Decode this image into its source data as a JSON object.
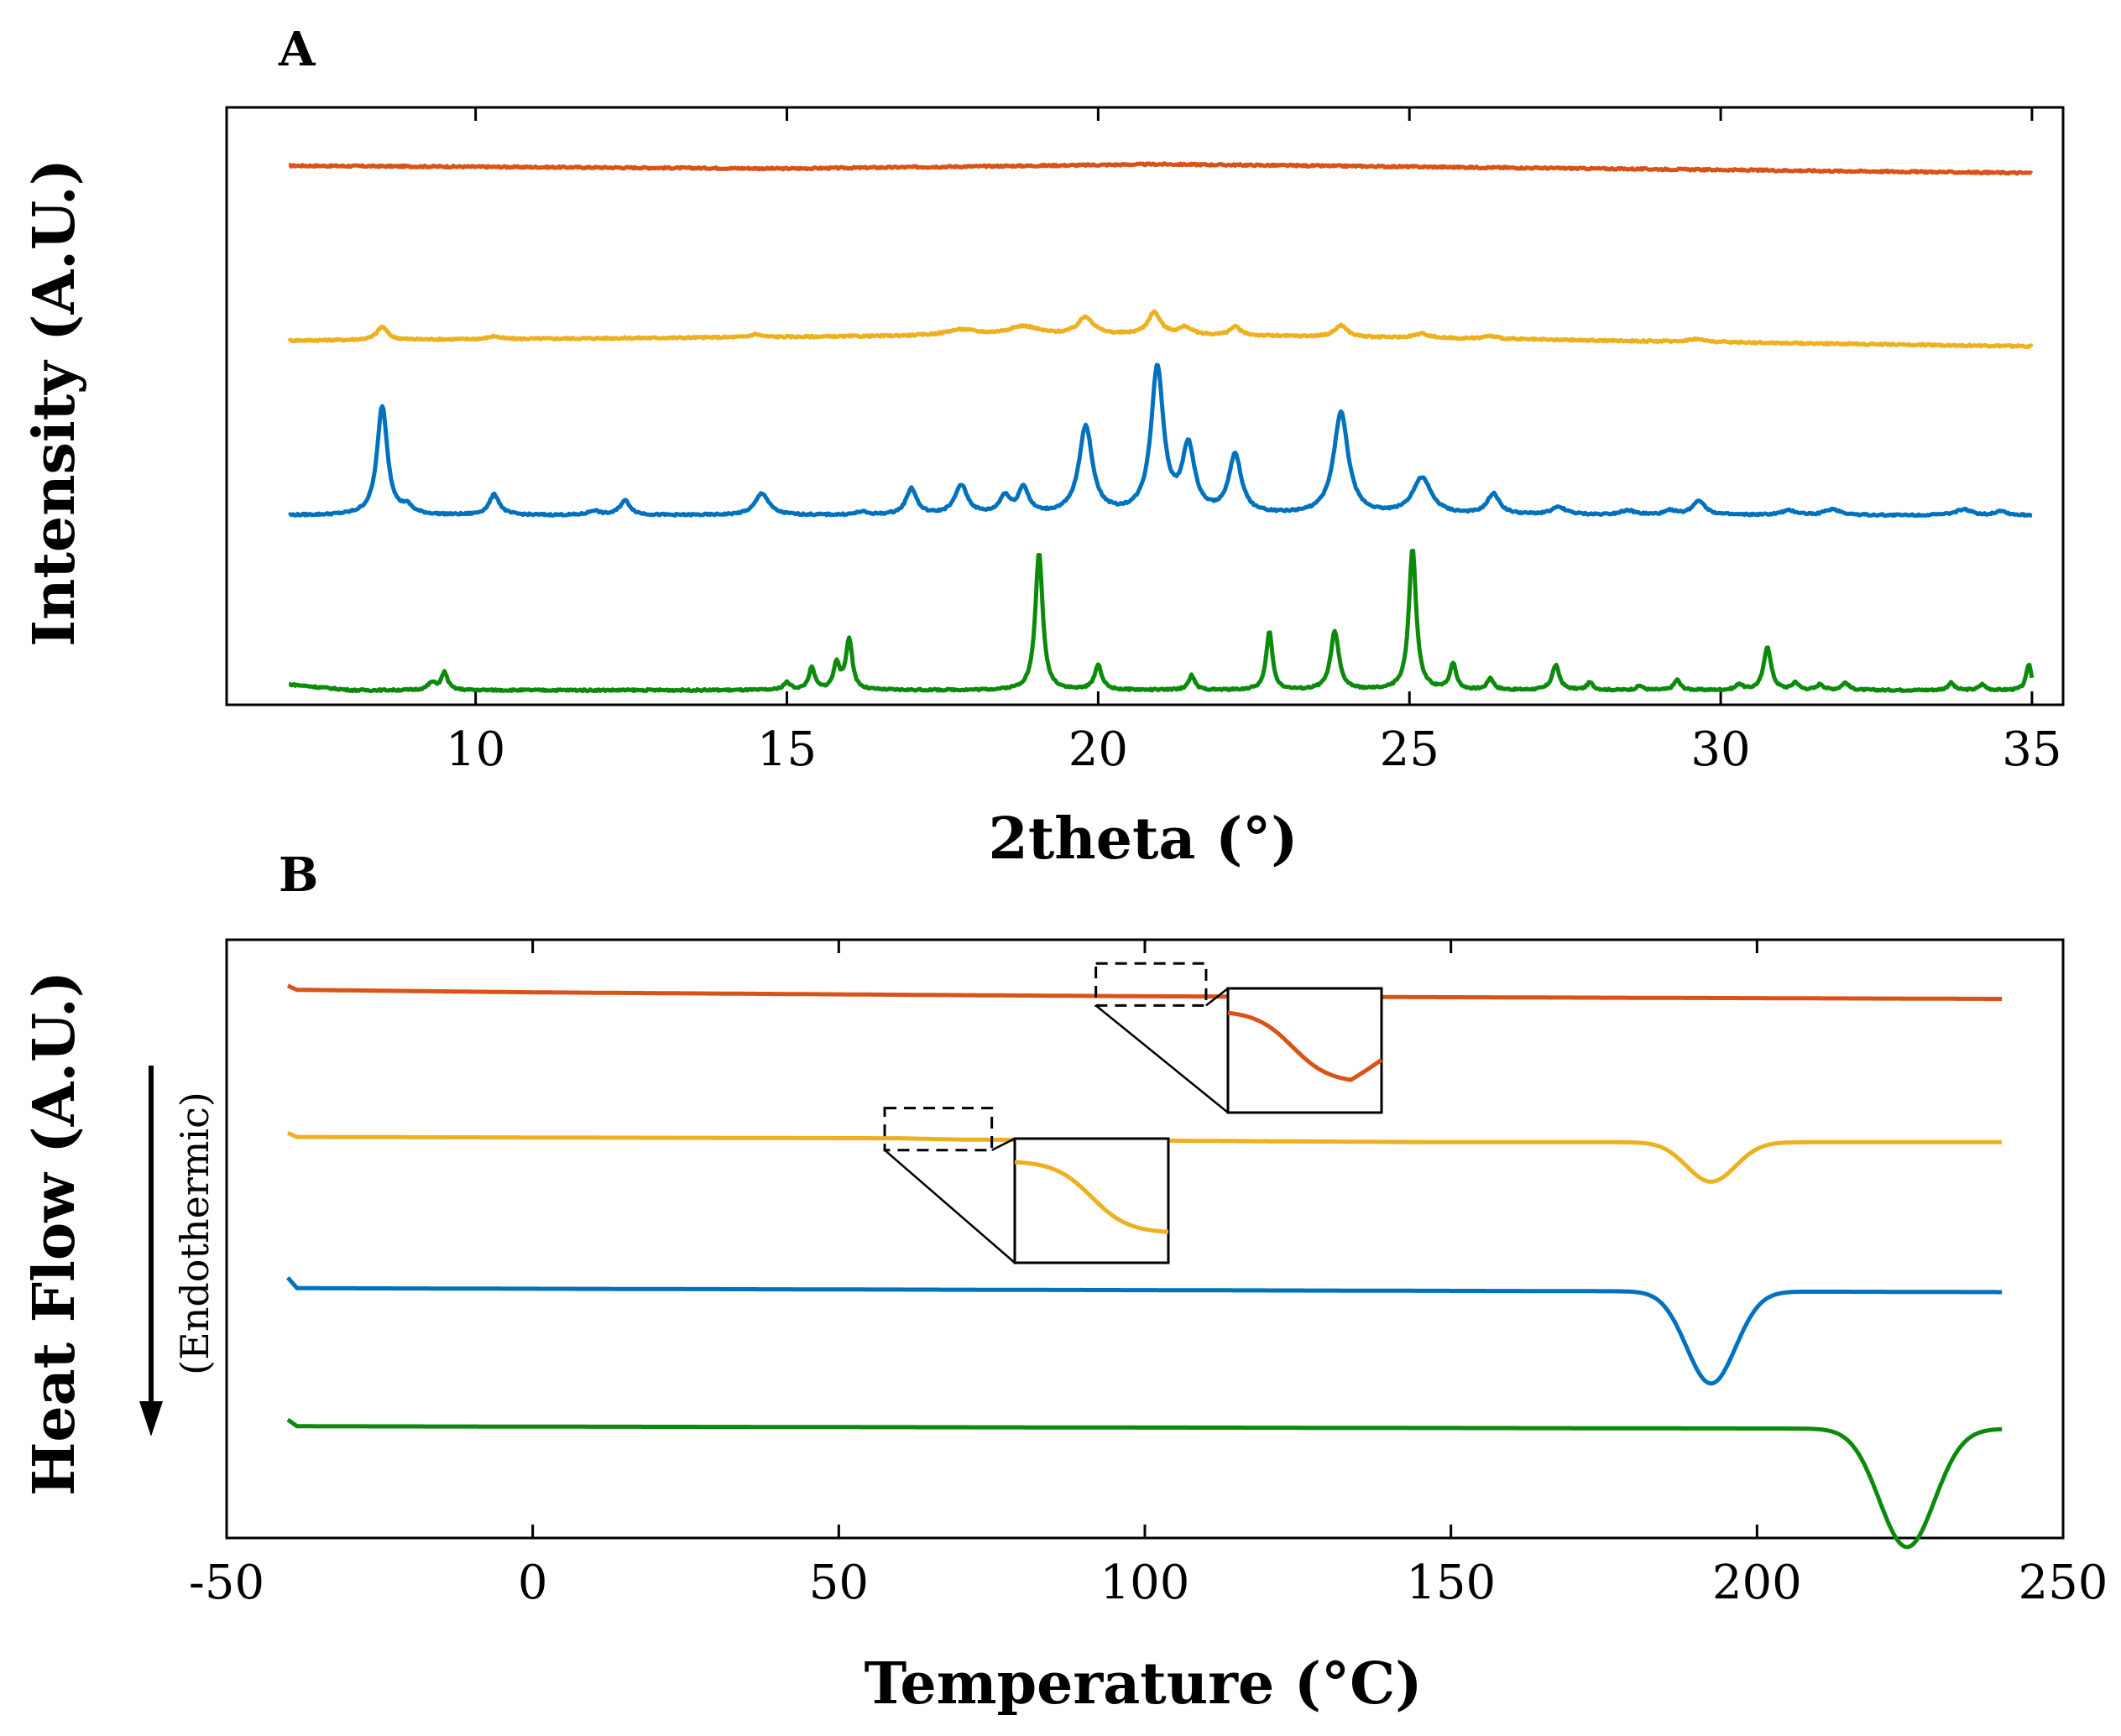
{
  "chart_data": [
    {
      "type": "line",
      "panel": "A",
      "title": "",
      "xlabel": "2theta (°)",
      "ylabel": "Intensity (A.U.)",
      "xlim": [
        6,
        35.5
      ],
      "ylim": [
        -0.1,
        4.0
      ],
      "x_ticks": [
        10,
        15,
        20,
        25,
        30,
        35
      ],
      "y_ticks": [],
      "grid": false,
      "legend": "none",
      "series": [
        {
          "name": "top (orange)",
          "color": "#D95319",
          "baseline": 3.6,
          "offsets": [
            [
              7,
              0.0
            ],
            [
              15,
              -0.02
            ],
            [
              21,
              0.01
            ],
            [
              35,
              -0.05
            ]
          ],
          "peaks": []
        },
        {
          "name": "second (yellow)",
          "color": "#EDB120",
          "baseline": 2.4,
          "offsets": [
            [
              7,
              0.0
            ],
            [
              17,
              0.03
            ],
            [
              21,
              0.04
            ],
            [
              35,
              -0.04
            ]
          ],
          "peaks": [
            [
              8.5,
              0.09,
              0.1
            ],
            [
              10.3,
              0.02,
              0.1
            ],
            [
              14.5,
              0.02,
              0.1
            ],
            [
              17.8,
              0.04,
              0.3
            ],
            [
              18.8,
              0.06,
              0.3
            ],
            [
              19.8,
              0.12,
              0.15
            ],
            [
              20.9,
              0.15,
              0.12
            ],
            [
              21.4,
              0.05,
              0.12
            ],
            [
              22.2,
              0.06,
              0.1
            ],
            [
              23.9,
              0.08,
              0.12
            ],
            [
              25.2,
              0.03,
              0.15
            ],
            [
              26.3,
              0.02,
              0.15
            ],
            [
              29.6,
              0.02,
              0.15
            ]
          ]
        },
        {
          "name": "third (blue)",
          "color": "#0072BD",
          "baseline": 1.2,
          "offsets": [
            [
              7,
              0.0
            ],
            [
              35,
              0.0
            ]
          ],
          "peaks": [
            [
              8.5,
              0.75,
              0.1
            ],
            [
              8.9,
              0.05,
              0.1
            ],
            [
              10.3,
              0.14,
              0.1
            ],
            [
              11.9,
              0.03,
              0.1
            ],
            [
              12.4,
              0.1,
              0.1
            ],
            [
              14.6,
              0.15,
              0.13
            ],
            [
              16.2,
              0.02,
              0.1
            ],
            [
              17.0,
              0.18,
              0.1
            ],
            [
              17.8,
              0.2,
              0.12
            ],
            [
              18.5,
              0.12,
              0.1
            ],
            [
              18.8,
              0.18,
              0.1
            ],
            [
              19.8,
              0.6,
              0.13
            ],
            [
              20.95,
              1.0,
              0.12
            ],
            [
              21.45,
              0.45,
              0.12
            ],
            [
              22.2,
              0.4,
              0.12
            ],
            [
              23.9,
              0.7,
              0.14
            ],
            [
              25.2,
              0.25,
              0.18
            ],
            [
              26.35,
              0.14,
              0.12
            ],
            [
              27.4,
              0.05,
              0.15
            ],
            [
              28.5,
              0.03,
              0.15
            ],
            [
              29.2,
              0.03,
              0.1
            ],
            [
              29.65,
              0.1,
              0.12
            ],
            [
              31.1,
              0.03,
              0.15
            ],
            [
              31.8,
              0.04,
              0.15
            ],
            [
              33.9,
              0.04,
              0.15
            ],
            [
              34.5,
              0.03,
              0.1
            ]
          ]
        },
        {
          "name": "bottom (green)",
          "color": "#0B8A0B",
          "baseline": 0.0,
          "offsets": [
            [
              7,
              0.04
            ],
            [
              8,
              0.0
            ],
            [
              35,
              0.0
            ]
          ],
          "peaks": [
            [
              9.3,
              0.05,
              0.08
            ],
            [
              9.5,
              0.12,
              0.06
            ],
            [
              15.0,
              0.05,
              0.07
            ],
            [
              15.4,
              0.15,
              0.06
            ],
            [
              15.8,
              0.18,
              0.06
            ],
            [
              16.0,
              0.35,
              0.06
            ],
            [
              19.05,
              0.95,
              0.07
            ],
            [
              20.0,
              0.17,
              0.07
            ],
            [
              21.5,
              0.1,
              0.06
            ],
            [
              22.75,
              0.4,
              0.06
            ],
            [
              23.8,
              0.4,
              0.08
            ],
            [
              25.05,
              0.97,
              0.07
            ],
            [
              25.7,
              0.18,
              0.06
            ],
            [
              26.3,
              0.08,
              0.06
            ],
            [
              27.35,
              0.17,
              0.07
            ],
            [
              27.9,
              0.05,
              0.06
            ],
            [
              28.7,
              0.03,
              0.06
            ],
            [
              29.3,
              0.07,
              0.06
            ],
            [
              30.3,
              0.04,
              0.06
            ],
            [
              30.75,
              0.3,
              0.07
            ],
            [
              31.2,
              0.05,
              0.06
            ],
            [
              31.6,
              0.04,
              0.06
            ],
            [
              32.0,
              0.05,
              0.07
            ],
            [
              33.7,
              0.05,
              0.06
            ],
            [
              34.2,
              0.04,
              0.06
            ],
            [
              34.95,
              0.18,
              0.05
            ]
          ]
        }
      ]
    },
    {
      "type": "line",
      "panel": "B",
      "title": "",
      "xlabel": "Temperature (°C)",
      "ylabel": "Heat Flow (A.U.)",
      "direction_note": "(Endothermic)",
      "xlim": [
        -50,
        250
      ],
      "ylim": [
        -0.85,
        3.7
      ],
      "x_ticks": [
        -50,
        0,
        50,
        100,
        150,
        200,
        250
      ],
      "y_ticks": [],
      "grid": false,
      "legend": "none",
      "series": [
        {
          "name": "top (orange)",
          "color": "#D95319",
          "baseline": 3.3,
          "start_spike": 0.03,
          "offsets": [
            [
              -40,
              0.02
            ],
            [
              0,
              0.0
            ],
            [
              65,
              -0.02
            ],
            [
              100,
              -0.03
            ],
            [
              240,
              -0.05
            ]
          ],
          "dips": []
        },
        {
          "name": "second (yellow)",
          "color": "#EDB120",
          "baseline": 2.2,
          "start_spike": 0.03,
          "offsets": [
            [
              -40,
              0.0
            ],
            [
              60,
              -0.01
            ],
            [
              70,
              -0.02
            ],
            [
              150,
              -0.04
            ],
            [
              240,
              -0.04
            ]
          ],
          "dips": [
            [
              192.5,
              0.3,
              4.0
            ]
          ]
        },
        {
          "name": "third (blue)",
          "color": "#0072BD",
          "baseline": 1.05,
          "start_spike": 0.08,
          "offsets": [
            [
              -40,
              0.0
            ],
            [
              240,
              -0.03
            ]
          ],
          "dips": [
            [
              192.5,
              0.7,
              4.0
            ]
          ]
        },
        {
          "name": "bottom (green)",
          "color": "#0B8A0B",
          "baseline": 0.0,
          "start_spike": 0.05,
          "offsets": [
            [
              -40,
              0.0
            ],
            [
              240,
              -0.02
            ]
          ],
          "dips": [
            [
              224.5,
              0.9,
              4.5
            ]
          ]
        }
      ],
      "insets": [
        {
          "series": "top (orange)",
          "region_x": [
            92,
            110
          ],
          "region_y": [
            3.2,
            3.52
          ],
          "anchor": "up"
        },
        {
          "series": "second (yellow)",
          "region_x": [
            57.5,
            75
          ],
          "region_y": [
            2.1,
            2.42
          ],
          "anchor": "down"
        }
      ]
    }
  ]
}
